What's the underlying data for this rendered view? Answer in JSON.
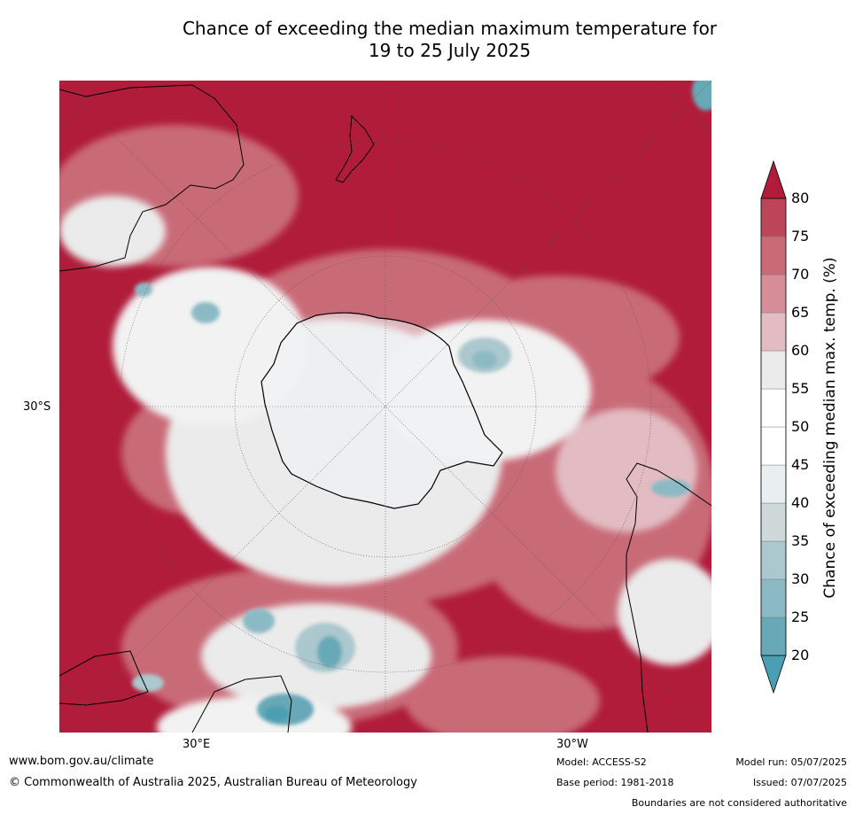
{
  "title": {
    "line1": "Chance of exceeding the median maximum temperature for",
    "line2": "19 to 25 July 2025"
  },
  "map": {
    "projection": "south-polar-stereographic",
    "lat_labels": [
      "30°S"
    ],
    "lon_labels": [
      "30°E",
      "30°W"
    ]
  },
  "colorbar": {
    "title": "Chance of exceeding median max. temp. (%)",
    "ticks": [
      "20",
      "25",
      "30",
      "35",
      "40",
      "45",
      "50",
      "55",
      "60",
      "65",
      "70",
      "75",
      "80"
    ],
    "bins": [
      {
        "range": "<20",
        "color": "#4b9fb3"
      },
      {
        "range": "20-25",
        "color": "#68a8b7"
      },
      {
        "range": "25-30",
        "color": "#8bbac5"
      },
      {
        "range": "30-35",
        "color": "#abc8ce"
      },
      {
        "range": "35-40",
        "color": "#cfd9da"
      },
      {
        "range": "40-45",
        "color": "#e9eef1"
      },
      {
        "range": "45-50",
        "color": "#ffffff"
      },
      {
        "range": "50-55",
        "color": "#ffffff"
      },
      {
        "range": "55-60",
        "color": "#ebebeb"
      },
      {
        "range": "60-65",
        "color": "#e2bcc2"
      },
      {
        "range": "65-70",
        "color": "#d68d97"
      },
      {
        "range": "70-75",
        "color": "#c96a77"
      },
      {
        "range": "75-80",
        "color": "#bc4658"
      },
      {
        "range": ">80",
        "color": "#b01c3a"
      }
    ]
  },
  "footer": {
    "website": "www.bom.gov.au/climate",
    "copyright": "© Commonwealth of Australia 2025, Australian Bureau of Meteorology",
    "model": "Model: ACCESS-S2",
    "base_period": "Base period: 1981-2018",
    "model_run": "Model run: 05/07/2025",
    "issued": "Issued: 07/07/2025",
    "disclaimer": "Boundaries are not considered authoritative"
  }
}
